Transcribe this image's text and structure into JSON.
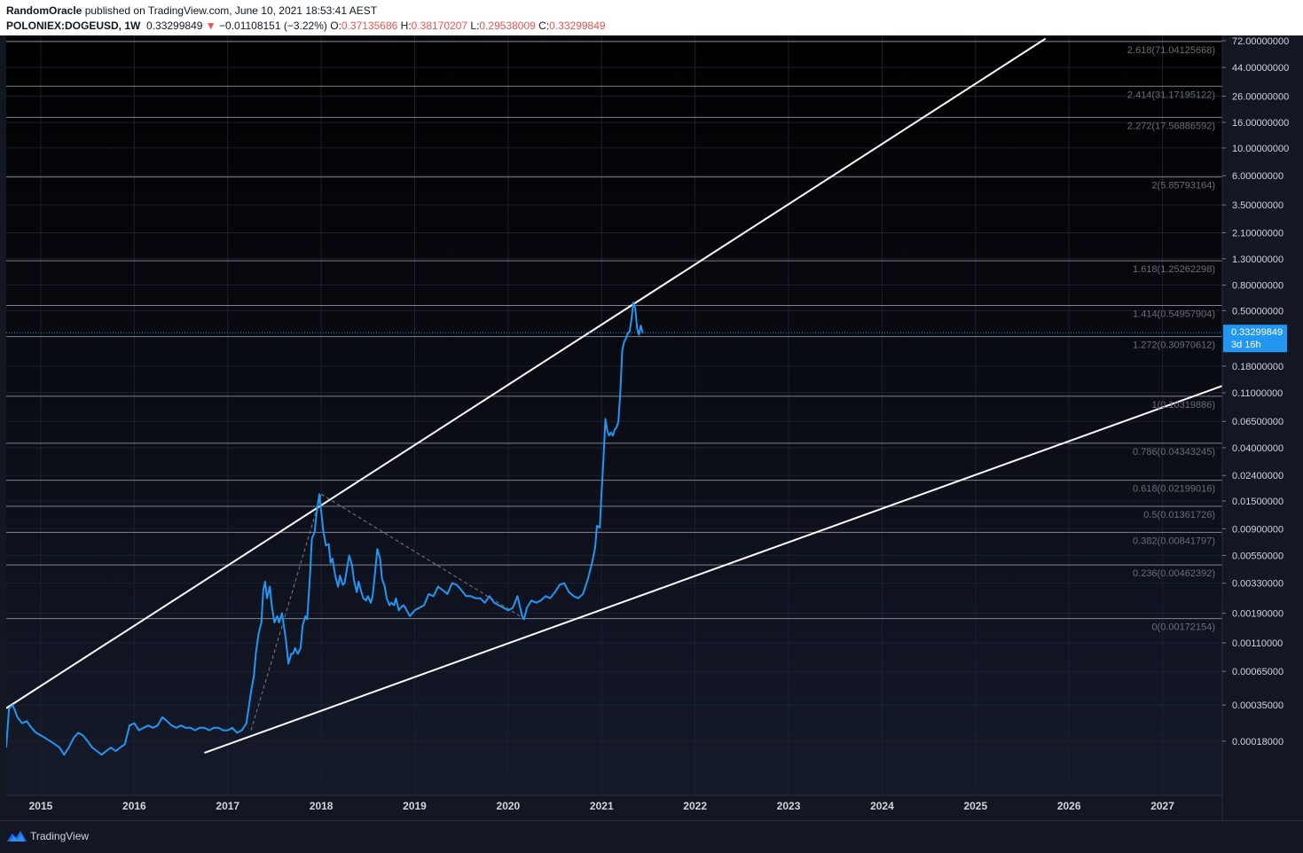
{
  "header": {
    "author": "RandomOracle",
    "published_text": " published on TradingView.com, June 10, 2021 18:53:41 AEST",
    "symbol": "POLONIEX:DOGEUSD, 1W",
    "last": "0.33299849",
    "arrow": "▼",
    "change": "−0.01108151 (−3.22%)",
    "o_label": "O:",
    "o_value": "0.37135686",
    "h_label": "H:",
    "h_value": "0.38170207",
    "l_label": "L:",
    "l_value": "0.29538009",
    "c_label": "C:",
    "c_value": "0.33299849"
  },
  "footer": {
    "brand": "TradingView"
  },
  "colors": {
    "background": "#131722",
    "price_line": "#2196f3",
    "fib_lines": "#9598a1",
    "trend_lines": "#ffffff",
    "negative": "#ef5350"
  },
  "chart_data": {
    "type": "line",
    "scale": "log",
    "xlim": [
      2014.63,
      2027.64
    ],
    "ylim": [
      0.00011,
      72
    ],
    "x_ticks": [
      "2015",
      "2016",
      "2017",
      "2018",
      "2019",
      "2020",
      "2021",
      "2022",
      "2023",
      "2024",
      "2025",
      "2026",
      "2027"
    ],
    "y_ticks": [
      "72.00000000",
      "44.00000000",
      "26.00000000",
      "16.00000000",
      "10.00000000",
      "6.00000000",
      "3.50000000",
      "2.10000000",
      "1.30000000",
      "0.80000000",
      "0.50000000",
      "0.18000000",
      "0.11000000",
      "0.06500000",
      "0.04000000",
      "0.02400000",
      "0.01500000",
      "0.00900000",
      "0.00550000",
      "0.00330000",
      "0.00190000",
      "0.00110000",
      "0.00065000",
      "0.00035000",
      "0.00018000"
    ],
    "last_price": {
      "value": 0.33299849,
      "label": "0.33299849",
      "countdown": "3d 16h"
    },
    "fib_levels": [
      {
        "label": "2.618(71.04125668)",
        "value": 71.04125668
      },
      {
        "label": "2.414(31.17195122)",
        "value": 31.17195122
      },
      {
        "label": "2.272(17.56886592)",
        "value": 17.56886592
      },
      {
        "label": "2(5.85793164)",
        "value": 5.85793164
      },
      {
        "label": "1.618(1.25262298)",
        "value": 1.25262298
      },
      {
        "label": "1.414(0.54957904)",
        "value": 0.54957904
      },
      {
        "label": "1.272(0.30970612)",
        "value": 0.30970612
      },
      {
        "label": "1(0.10319886)",
        "value": 0.10319886
      },
      {
        "label": "0.786(0.04343245)",
        "value": 0.04343245
      },
      {
        "label": "0.618(0.02199016)",
        "value": 0.02199016
      },
      {
        "label": "0.5(0.01361726)",
        "value": 0.01361726
      },
      {
        "label": "0.382(0.00841797)",
        "value": 0.00841797
      },
      {
        "label": "0.236(0.00462392)",
        "value": 0.00462392
      },
      {
        "label": "0(0.00172154)",
        "value": 0.00172154
      }
    ],
    "trend_lines": [
      {
        "x1": 2014.63,
        "y1": 0.00033,
        "x2": 2025.75,
        "y2": 75.0
      },
      {
        "x1": 2016.75,
        "y1": 0.000145,
        "x2": 2027.64,
        "y2": 0.125
      }
    ],
    "fib_guides": [
      {
        "x1": 2017.25,
        "y1": 0.00022,
        "x2": 2018.0,
        "y2": 0.017
      },
      {
        "x1": 2018.0,
        "y1": 0.017,
        "x2": 2020.17,
        "y2": 0.00172
      }
    ],
    "series": [
      {
        "x": [
          2014.63,
          2014.66,
          2014.7,
          2014.75,
          2014.8,
          2014.85,
          2014.9,
          2014.95,
          2015.0,
          2015.05,
          2015.1,
          2015.15,
          2015.2,
          2015.25,
          2015.3,
          2015.35,
          2015.4,
          2015.45,
          2015.5,
          2015.55,
          2015.6,
          2015.65,
          2015.7,
          2015.75,
          2015.8,
          2015.85,
          2015.9,
          2015.95,
          2016.0,
          2016.05,
          2016.1,
          2016.15,
          2016.2,
          2016.25,
          2016.3,
          2016.35,
          2016.4,
          2016.45,
          2016.5,
          2016.55,
          2016.6,
          2016.65,
          2016.7,
          2016.75,
          2016.8,
          2016.85,
          2016.9,
          2016.95,
          2017.0,
          2017.05,
          2017.1,
          2017.15,
          2017.2,
          2017.25,
          2017.28,
          2017.3,
          2017.33,
          2017.36,
          2017.38,
          2017.4,
          2017.42,
          2017.45,
          2017.47,
          2017.5,
          2017.53,
          2017.55,
          2017.58,
          2017.6,
          2017.62,
          2017.65,
          2017.68,
          2017.7,
          2017.72,
          2017.75,
          2017.78,
          2017.8,
          2017.83,
          2017.85,
          2017.88,
          2017.9,
          2017.93,
          2017.95,
          2017.98,
          2018.0,
          2018.02,
          2018.05,
          2018.08,
          2018.1,
          2018.12,
          2018.15,
          2018.18,
          2018.2,
          2018.23,
          2018.25,
          2018.28,
          2018.3,
          2018.33,
          2018.35,
          2018.38,
          2018.4,
          2018.43,
          2018.45,
          2018.48,
          2018.5,
          2018.53,
          2018.55,
          2018.58,
          2018.6,
          2018.63,
          2018.65,
          2018.68,
          2018.7,
          2018.73,
          2018.75,
          2018.78,
          2018.8,
          2018.83,
          2018.85,
          2018.88,
          2018.9,
          2018.93,
          2018.95,
          2019.0,
          2019.05,
          2019.1,
          2019.15,
          2019.2,
          2019.25,
          2019.3,
          2019.35,
          2019.4,
          2019.45,
          2019.5,
          2019.55,
          2019.6,
          2019.65,
          2019.7,
          2019.75,
          2019.8,
          2019.85,
          2019.9,
          2019.95,
          2020.0,
          2020.05,
          2020.1,
          2020.15,
          2020.17,
          2020.2,
          2020.25,
          2020.3,
          2020.35,
          2020.4,
          2020.45,
          2020.5,
          2020.55,
          2020.6,
          2020.65,
          2020.7,
          2020.75,
          2020.8,
          2020.85,
          2020.9,
          2020.93,
          2020.95,
          2020.98,
          2021.0,
          2021.02,
          2021.04,
          2021.06,
          2021.08,
          2021.1,
          2021.12,
          2021.14,
          2021.16,
          2021.18,
          2021.2,
          2021.22,
          2021.24,
          2021.26,
          2021.28,
          2021.3,
          2021.32,
          2021.34,
          2021.36,
          2021.38,
          2021.4,
          2021.42,
          2021.44
        ],
        "y": [
          0.00016,
          0.00033,
          0.00035,
          0.00028,
          0.00025,
          0.00026,
          0.00023,
          0.00021,
          0.0002,
          0.00019,
          0.00018,
          0.00017,
          0.00016,
          0.00014,
          0.00016,
          0.00019,
          0.00021,
          0.0002,
          0.00018,
          0.00016,
          0.00015,
          0.00014,
          0.00015,
          0.00016,
          0.00015,
          0.00016,
          0.00017,
          0.00024,
          0.00025,
          0.00022,
          0.00023,
          0.00024,
          0.00023,
          0.00024,
          0.00028,
          0.00026,
          0.00024,
          0.00023,
          0.00024,
          0.00023,
          0.00023,
          0.00022,
          0.00023,
          0.00023,
          0.00022,
          0.00023,
          0.00023,
          0.00022,
          0.00022,
          0.00023,
          0.00021,
          0.00022,
          0.00025,
          0.00045,
          0.0006,
          0.0009,
          0.0013,
          0.0016,
          0.0029,
          0.0034,
          0.0025,
          0.0031,
          0.0022,
          0.0016,
          0.0018,
          0.0016,
          0.0019,
          0.0015,
          0.0012,
          0.00075,
          0.0009,
          0.0009,
          0.001,
          0.0009,
          0.001,
          0.0015,
          0.0018,
          0.0017,
          0.0038,
          0.0075,
          0.0085,
          0.012,
          0.017,
          0.0125,
          0.0089,
          0.0066,
          0.0068,
          0.0048,
          0.0052,
          0.0038,
          0.0031,
          0.0038,
          0.0032,
          0.0033,
          0.0045,
          0.0055,
          0.0046,
          0.0035,
          0.0028,
          0.0034,
          0.0028,
          0.0025,
          0.0024,
          0.0026,
          0.0023,
          0.0026,
          0.0043,
          0.0062,
          0.0052,
          0.0036,
          0.0031,
          0.0025,
          0.0022,
          0.0023,
          0.0022,
          0.0025,
          0.002,
          0.0021,
          0.0022,
          0.0021,
          0.0019,
          0.0018,
          0.002,
          0.0021,
          0.0022,
          0.0027,
          0.0026,
          0.0031,
          0.0029,
          0.0027,
          0.0033,
          0.0032,
          0.0029,
          0.0026,
          0.0026,
          0.0025,
          0.0025,
          0.0023,
          0.0026,
          0.0023,
          0.0022,
          0.0021,
          0.002,
          0.0021,
          0.0026,
          0.0018,
          0.0017,
          0.0021,
          0.0024,
          0.0023,
          0.0024,
          0.0026,
          0.0025,
          0.0028,
          0.0032,
          0.0033,
          0.0028,
          0.0026,
          0.0025,
          0.0027,
          0.0035,
          0.0049,
          0.0063,
          0.0095,
          0.0092,
          0.018,
          0.033,
          0.068,
          0.055,
          0.05,
          0.053,
          0.05,
          0.056,
          0.058,
          0.065,
          0.11,
          0.24,
          0.28,
          0.3,
          0.33,
          0.34,
          0.43,
          0.58,
          0.52,
          0.36,
          0.32,
          0.38,
          0.33
        ]
      }
    ]
  }
}
